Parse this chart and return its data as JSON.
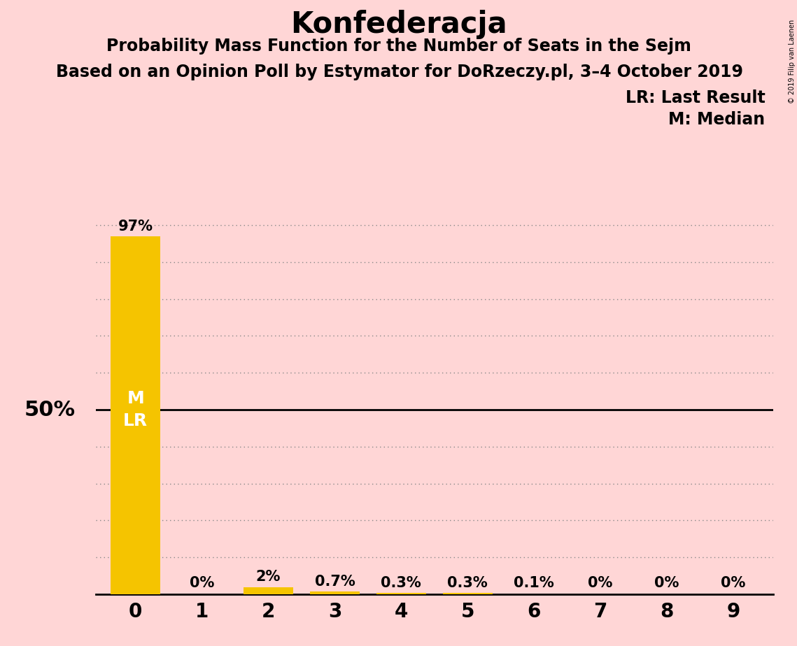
{
  "title": "Konfederacja",
  "subtitle1": "Probability Mass Function for the Number of Seats in the Sejm",
  "subtitle2": "Based on an Opinion Poll by Estymator for DoRzeczy.pl, 3–4 October 2019",
  "copyright": "© 2019 Filip van Laenen",
  "categories": [
    0,
    1,
    2,
    3,
    4,
    5,
    6,
    7,
    8,
    9
  ],
  "values": [
    0.97,
    0.0,
    0.02,
    0.007,
    0.003,
    0.003,
    0.001,
    0.0,
    0.0,
    0.0
  ],
  "bar_labels": [
    "97%",
    "0%",
    "2%",
    "0.7%",
    "0.3%",
    "0.3%",
    "0.1%",
    "0%",
    "0%",
    "0%"
  ],
  "bar_color": "#F5C400",
  "background_color": "#FFD6D6",
  "median_seat": 0,
  "last_result_seat": 0,
  "ylim": [
    0,
    1.05
  ],
  "yticks": [
    0.0,
    0.1,
    0.2,
    0.3,
    0.4,
    0.5,
    0.6,
    0.7,
    0.8,
    0.9,
    1.0
  ],
  "hline_50_color": "#000000",
  "dotted_line_color": "#888888",
  "legend_lr": "LR: Last Result",
  "legend_m": "M: Median",
  "title_fontsize": 30,
  "subtitle1_fontsize": 17,
  "subtitle2_fontsize": 17,
  "bar_label_fontsize": 15,
  "fifty_pct_fontsize": 22,
  "annotation_fontsize": 17,
  "xtick_fontsize": 20,
  "ml_fontsize": 18
}
